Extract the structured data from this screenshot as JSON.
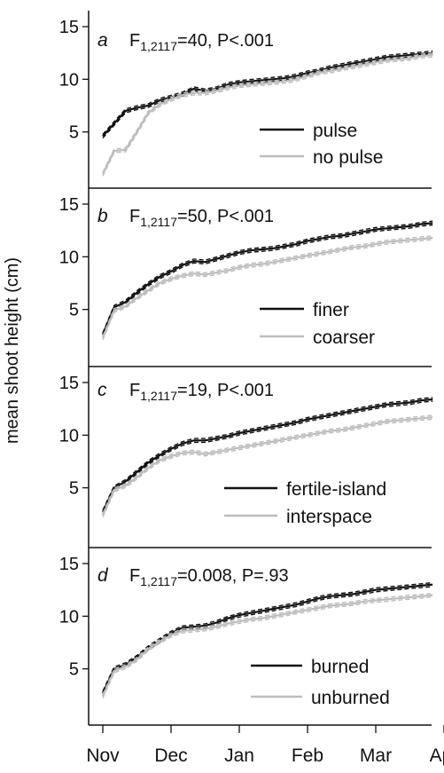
{
  "figure": {
    "ylabel": "mean shoot height (cm)",
    "month_labels": [
      "Nov",
      "Dec",
      "Jan",
      "Feb",
      "Mar",
      "Apr"
    ]
  },
  "chart_data": [
    {
      "type": "line",
      "panel_letter": "a",
      "stat_pre": "F",
      "stat_sub": "1,2117",
      "stat_post": "=40, P<.001",
      "ylim": [
        0,
        15
      ],
      "yticks": [
        5,
        10,
        15
      ],
      "x": [
        0,
        5,
        10,
        15,
        20,
        25,
        30,
        35,
        40,
        45,
        50,
        55,
        60,
        65,
        70,
        75,
        80,
        85,
        90,
        95,
        100,
        105,
        110,
        115,
        120,
        125,
        130,
        135,
        140,
        145
      ],
      "series": [
        {
          "name": "pulse",
          "color": "#111111",
          "values": [
            4.6,
            5.8,
            7.0,
            7.3,
            7.5,
            8.0,
            8.3,
            8.6,
            9.1,
            8.9,
            9.1,
            9.5,
            9.7,
            9.8,
            9.9,
            10.0,
            10.1,
            10.3,
            10.6,
            10.8,
            11.1,
            11.3,
            11.5,
            11.7,
            11.9,
            12.1,
            12.2,
            12.3,
            12.4,
            12.5
          ]
        },
        {
          "name": "no pulse",
          "color": "#bdbdbd",
          "values": [
            1.0,
            3.2,
            3.3,
            5.0,
            6.8,
            7.6,
            8.1,
            8.5,
            8.7,
            8.7,
            8.9,
            9.2,
            9.4,
            9.5,
            9.6,
            9.7,
            9.8,
            10.0,
            10.3,
            10.6,
            10.8,
            11.0,
            11.2,
            11.4,
            11.6,
            11.8,
            11.9,
            12.0,
            12.2,
            12.3
          ]
        }
      ]
    },
    {
      "type": "line",
      "panel_letter": "b",
      "stat_pre": "F",
      "stat_sub": "1,2117",
      "stat_post": "=50, P<.001",
      "ylim": [
        0,
        15
      ],
      "yticks": [
        5,
        10,
        15
      ],
      "x": [
        0,
        5,
        10,
        15,
        20,
        25,
        30,
        35,
        40,
        45,
        50,
        55,
        60,
        65,
        70,
        75,
        80,
        85,
        90,
        95,
        100,
        105,
        110,
        115,
        120,
        125,
        130,
        135,
        140,
        145
      ],
      "series": [
        {
          "name": "finer",
          "color": "#111111",
          "values": [
            2.6,
            5.2,
            5.7,
            6.6,
            7.4,
            8.1,
            8.6,
            9.2,
            9.6,
            9.5,
            9.8,
            10.1,
            10.4,
            10.6,
            10.7,
            10.8,
            11.0,
            11.2,
            11.5,
            11.7,
            11.9,
            12.0,
            12.2,
            12.4,
            12.6,
            12.7,
            12.8,
            12.9,
            13.1,
            13.2
          ]
        },
        {
          "name": "coarser",
          "color": "#bdbdbd",
          "values": [
            2.3,
            4.9,
            5.3,
            6.1,
            6.8,
            7.5,
            7.9,
            8.2,
            8.4,
            8.3,
            8.5,
            8.7,
            9.0,
            9.2,
            9.3,
            9.5,
            9.7,
            9.9,
            10.1,
            10.3,
            10.5,
            10.7,
            10.9,
            11.0,
            11.2,
            11.4,
            11.5,
            11.6,
            11.7,
            11.8
          ]
        }
      ]
    },
    {
      "type": "line",
      "panel_letter": "c",
      "stat_pre": "F",
      "stat_sub": "1,2117",
      "stat_post": "=19, P<.001",
      "ylim": [
        0,
        15
      ],
      "yticks": [
        5,
        10,
        15
      ],
      "x": [
        0,
        5,
        10,
        15,
        20,
        25,
        30,
        35,
        40,
        45,
        50,
        55,
        60,
        65,
        70,
        75,
        80,
        85,
        90,
        95,
        100,
        105,
        110,
        115,
        120,
        125,
        130,
        135,
        140,
        145
      ],
      "series": [
        {
          "name": "fertile-island",
          "color": "#111111",
          "values": [
            2.7,
            5.0,
            5.6,
            6.5,
            7.4,
            8.1,
            8.7,
            9.2,
            9.5,
            9.5,
            9.7,
            9.9,
            10.2,
            10.4,
            10.6,
            10.8,
            11.0,
            11.2,
            11.5,
            11.7,
            11.9,
            12.1,
            12.3,
            12.5,
            12.7,
            12.9,
            13.0,
            13.1,
            13.3,
            13.4
          ]
        },
        {
          "name": "interspace",
          "color": "#bdbdbd",
          "values": [
            2.4,
            4.8,
            5.2,
            6.0,
            6.9,
            7.6,
            8.0,
            8.3,
            8.4,
            8.2,
            8.4,
            8.6,
            8.8,
            9.0,
            9.2,
            9.4,
            9.6,
            9.8,
            10.0,
            10.2,
            10.4,
            10.5,
            10.7,
            10.9,
            11.1,
            11.3,
            11.4,
            11.5,
            11.6,
            11.7
          ]
        }
      ]
    },
    {
      "type": "line",
      "panel_letter": "d",
      "stat_pre": "F",
      "stat_sub": "1,2117",
      "stat_post": "=0.008, P=.93",
      "ylim": [
        0,
        15
      ],
      "yticks": [
        5,
        10,
        15
      ],
      "x": [
        0,
        5,
        10,
        15,
        20,
        25,
        30,
        35,
        40,
        45,
        50,
        55,
        60,
        65,
        70,
        75,
        80,
        85,
        90,
        95,
        100,
        105,
        110,
        115,
        120,
        125,
        130,
        135,
        140,
        145
      ],
      "series": [
        {
          "name": "burned",
          "color": "#111111",
          "values": [
            2.7,
            5.0,
            5.4,
            6.1,
            7.0,
            7.7,
            8.4,
            8.9,
            9.0,
            9.1,
            9.4,
            9.8,
            10.1,
            10.3,
            10.5,
            10.7,
            10.9,
            11.1,
            11.4,
            11.7,
            11.9,
            12.0,
            12.1,
            12.3,
            12.5,
            12.6,
            12.7,
            12.8,
            12.9,
            13.0
          ]
        },
        {
          "name": "unburned",
          "color": "#bdbdbd",
          "values": [
            2.4,
            4.8,
            5.2,
            5.9,
            6.9,
            7.6,
            8.2,
            8.6,
            8.7,
            8.8,
            9.0,
            9.3,
            9.5,
            9.7,
            9.8,
            10.0,
            10.2,
            10.4,
            10.6,
            10.8,
            11.0,
            11.1,
            11.2,
            11.4,
            11.5,
            11.6,
            11.7,
            11.8,
            11.9,
            12.0
          ]
        }
      ]
    }
  ]
}
